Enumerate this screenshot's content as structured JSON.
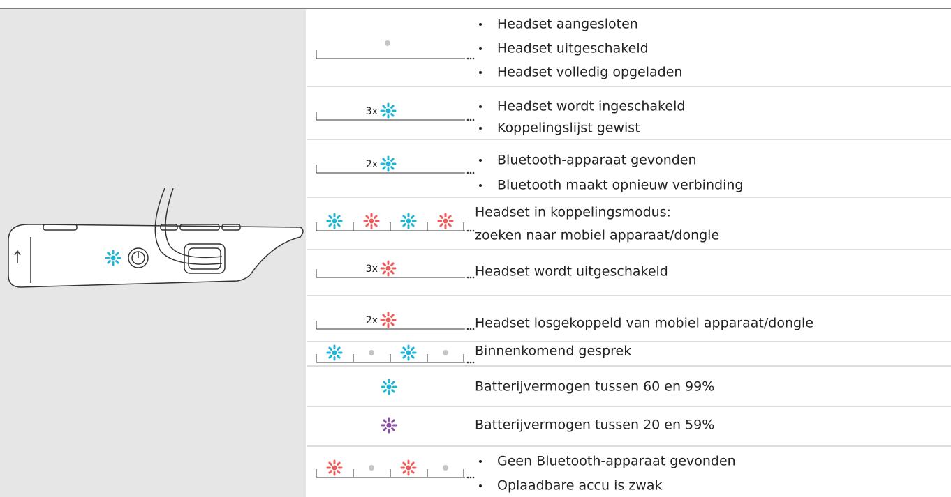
{
  "rows": [
    {
      "lines": [
        "Headset aangesloten",
        "Headset uitgeschakeld",
        "Headset volledig opgeladen"
      ],
      "bulleted": true
    },
    {
      "count": "3x",
      "lines": [
        "Headset wordt ingeschakeld",
        "Koppelingslijst gewist"
      ],
      "bulleted": true
    },
    {
      "count": "2x",
      "lines": [
        "Bluetooth-apparaat gevonden",
        "Bluetooth maakt opnieuw verbinding"
      ],
      "bulleted": true
    },
    {
      "lines": [
        "Headset in koppelingsmodus:",
        "zoeken naar mobiel apparaat/dongle"
      ],
      "bulleted": false
    },
    {
      "count": "3x",
      "lines": [
        "Headset wordt uitgeschakeld"
      ],
      "bulleted": false
    },
    {
      "count": "2x",
      "lines": [
        "Headset losgekoppeld van mobiel apparaat/dongle"
      ],
      "bulleted": false
    },
    {
      "lines": [
        "Binnenkomend gesprek"
      ],
      "bulleted": false
    },
    {
      "lines": [
        "Batterijvermogen tussen 60 en 99%"
      ],
      "bulleted": false
    },
    {
      "lines": [
        "Batterijvermogen tussen 20 en 59%"
      ],
      "bulleted": false
    },
    {
      "lines": [
        "Geen Bluetooth-apparaat gevonden",
        "Oplaadbare accu is zwak"
      ],
      "bulleted": true
    }
  ]
}
